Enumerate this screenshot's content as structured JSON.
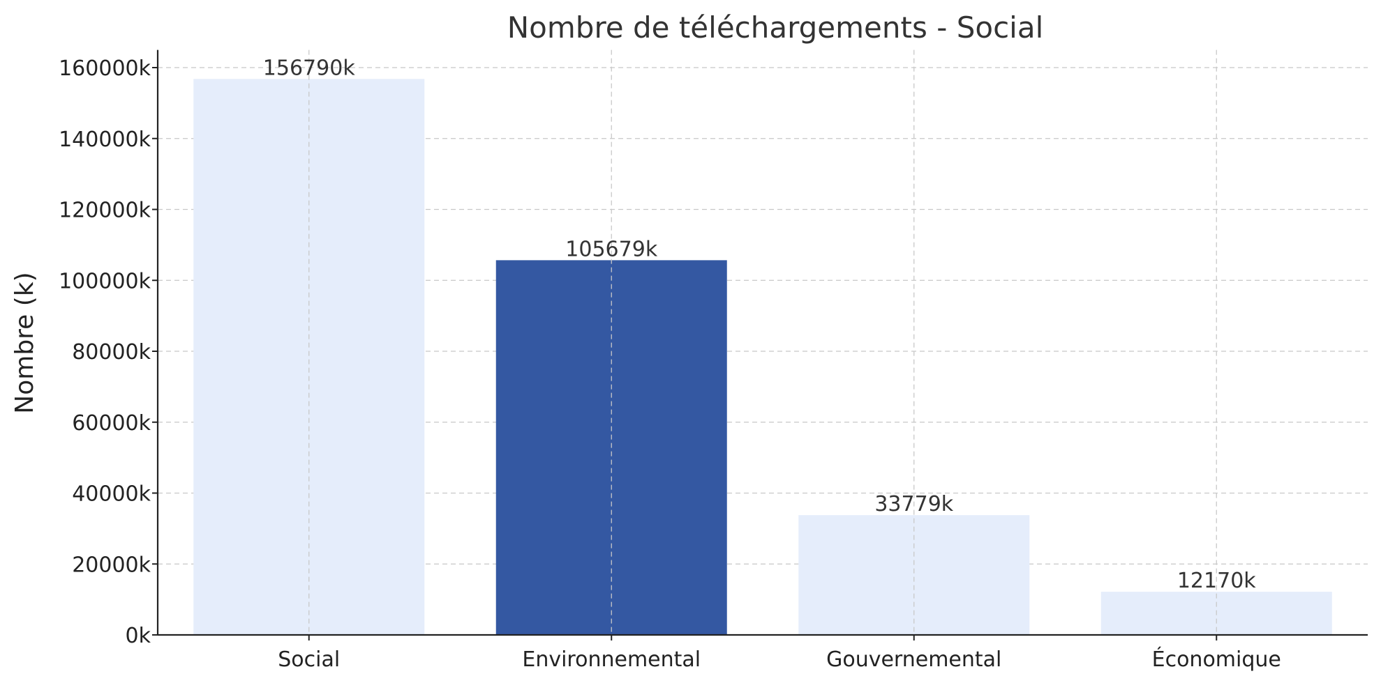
{
  "chart_data": {
    "type": "bar",
    "title": "Nombre de téléchargements - Social",
    "xlabel": "",
    "ylabel": "Nombre (k)",
    "categories": [
      "Social",
      "Environnemental",
      "Gouvernemental",
      "Économique"
    ],
    "values": [
      156790,
      105679,
      33779,
      12170
    ],
    "data_labels": [
      "156790k",
      "105679k",
      "33779k",
      "12170k"
    ],
    "highlighted_category": "Environnemental",
    "colors": {
      "bar": "#e5edfb",
      "bar_highlight": "#3458a2",
      "grid": "#c8c8c8",
      "axis": "#222222",
      "text": "#333333"
    },
    "ylim": [
      0,
      165000
    ],
    "yticks": [
      0,
      20000,
      40000,
      60000,
      80000,
      100000,
      120000,
      140000,
      160000
    ],
    "ytick_labels": [
      "0k",
      "20000k",
      "40000k",
      "60000k",
      "80000k",
      "100000k",
      "120000k",
      "140000k",
      "160000k"
    ],
    "grid": true,
    "legend": "none"
  }
}
